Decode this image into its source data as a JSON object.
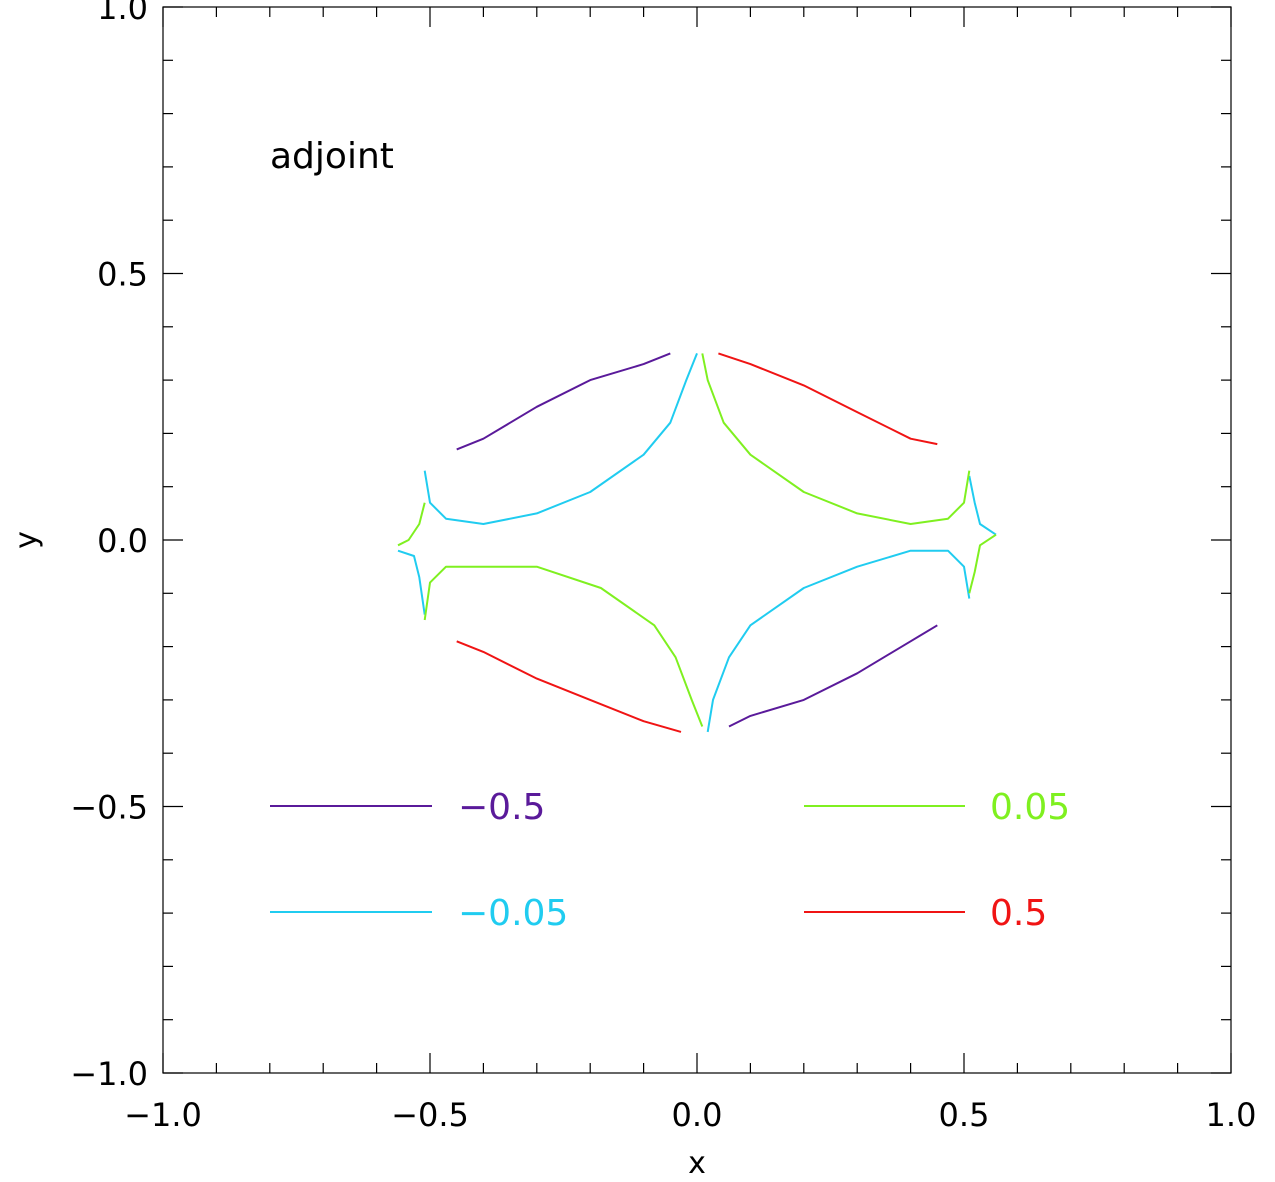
{
  "chart_data": {
    "type": "line",
    "title": "",
    "xlabel": "x",
    "ylabel": "y",
    "xlim": [
      -1.0,
      1.0
    ],
    "ylim": [
      -1.0,
      1.0
    ],
    "grid": false,
    "x_ticks": [
      "−1.0",
      "−0.5",
      "0.0",
      "0.5",
      "1.0"
    ],
    "y_ticks": [
      "−1.0",
      "−0.5",
      "0.0",
      "0.5",
      "1.0"
    ],
    "x_tick_values": [
      -1.0,
      -0.5,
      0.0,
      0.5,
      1.0
    ],
    "y_tick_values": [
      -1.0,
      -0.5,
      0.0,
      0.5,
      1.0
    ],
    "annotation": "adjoint",
    "legend_position": "bottom",
    "series": [
      {
        "name": "−0.5",
        "color": "#5a1a9a",
        "segments": [
          [
            [
              -0.45,
              0.17
            ],
            [
              -0.4,
              0.19
            ],
            [
              -0.3,
              0.25
            ],
            [
              -0.2,
              0.3
            ],
            [
              -0.1,
              0.33
            ],
            [
              -0.05,
              0.35
            ]
          ],
          [
            [
              0.06,
              -0.35
            ],
            [
              0.1,
              -0.33
            ],
            [
              0.2,
              -0.3
            ],
            [
              0.3,
              -0.25
            ],
            [
              0.4,
              -0.19
            ],
            [
              0.45,
              -0.16
            ]
          ]
        ]
      },
      {
        "name": "−0.05",
        "color": "#20ccf0",
        "segments": [
          [
            [
              0.0,
              0.35
            ],
            [
              -0.02,
              0.3
            ],
            [
              -0.05,
              0.22
            ],
            [
              -0.1,
              0.16
            ],
            [
              -0.2,
              0.09
            ],
            [
              -0.3,
              0.05
            ],
            [
              -0.4,
              0.03
            ],
            [
              -0.47,
              0.04
            ],
            [
              -0.5,
              0.07
            ],
            [
              -0.51,
              0.13
            ]
          ],
          [
            [
              -0.56,
              -0.02
            ],
            [
              -0.53,
              -0.03
            ],
            [
              -0.52,
              -0.07
            ],
            [
              -0.51,
              -0.14
            ]
          ],
          [
            [
              0.02,
              -0.36
            ],
            [
              0.03,
              -0.3
            ],
            [
              0.06,
              -0.22
            ],
            [
              0.1,
              -0.16
            ],
            [
              0.2,
              -0.09
            ],
            [
              0.3,
              -0.05
            ],
            [
              0.4,
              -0.02
            ],
            [
              0.47,
              -0.02
            ],
            [
              0.5,
              -0.05
            ],
            [
              0.51,
              -0.11
            ]
          ],
          [
            [
              0.51,
              0.12
            ],
            [
              0.52,
              0.07
            ],
            [
              0.53,
              0.03
            ],
            [
              0.56,
              0.01
            ]
          ]
        ]
      },
      {
        "name": "0.05",
        "color": "#7ff020",
        "segments": [
          [
            [
              0.01,
              0.35
            ],
            [
              0.02,
              0.3
            ],
            [
              0.05,
              0.22
            ],
            [
              0.1,
              0.16
            ],
            [
              0.2,
              0.09
            ],
            [
              0.3,
              0.05
            ],
            [
              0.4,
              0.03
            ],
            [
              0.47,
              0.04
            ],
            [
              0.5,
              0.07
            ],
            [
              0.51,
              0.13
            ]
          ],
          [
            [
              0.56,
              0.01
            ],
            [
              0.53,
              -0.01
            ],
            [
              0.52,
              -0.06
            ],
            [
              0.51,
              -0.1
            ]
          ],
          [
            [
              0.01,
              -0.35
            ],
            [
              -0.01,
              -0.3
            ],
            [
              -0.04,
              -0.22
            ],
            [
              -0.08,
              -0.16
            ],
            [
              -0.18,
              -0.09
            ],
            [
              -0.3,
              -0.05
            ],
            [
              -0.4,
              -0.05
            ],
            [
              -0.47,
              -0.05
            ],
            [
              -0.5,
              -0.08
            ],
            [
              -0.51,
              -0.15
            ]
          ],
          [
            [
              -0.51,
              0.07
            ],
            [
              -0.52,
              0.03
            ],
            [
              -0.54,
              0.0
            ],
            [
              -0.56,
              -0.01
            ]
          ]
        ]
      },
      {
        "name": "0.5",
        "color": "#f01414",
        "segments": [
          [
            [
              0.04,
              0.35
            ],
            [
              0.1,
              0.33
            ],
            [
              0.2,
              0.29
            ],
            [
              0.3,
              0.24
            ],
            [
              0.4,
              0.19
            ],
            [
              0.45,
              0.18
            ]
          ],
          [
            [
              -0.45,
              -0.19
            ],
            [
              -0.4,
              -0.21
            ],
            [
              -0.3,
              -0.26
            ],
            [
              -0.2,
              -0.3
            ],
            [
              -0.1,
              -0.34
            ],
            [
              -0.03,
              -0.36
            ]
          ]
        ]
      }
    ]
  }
}
